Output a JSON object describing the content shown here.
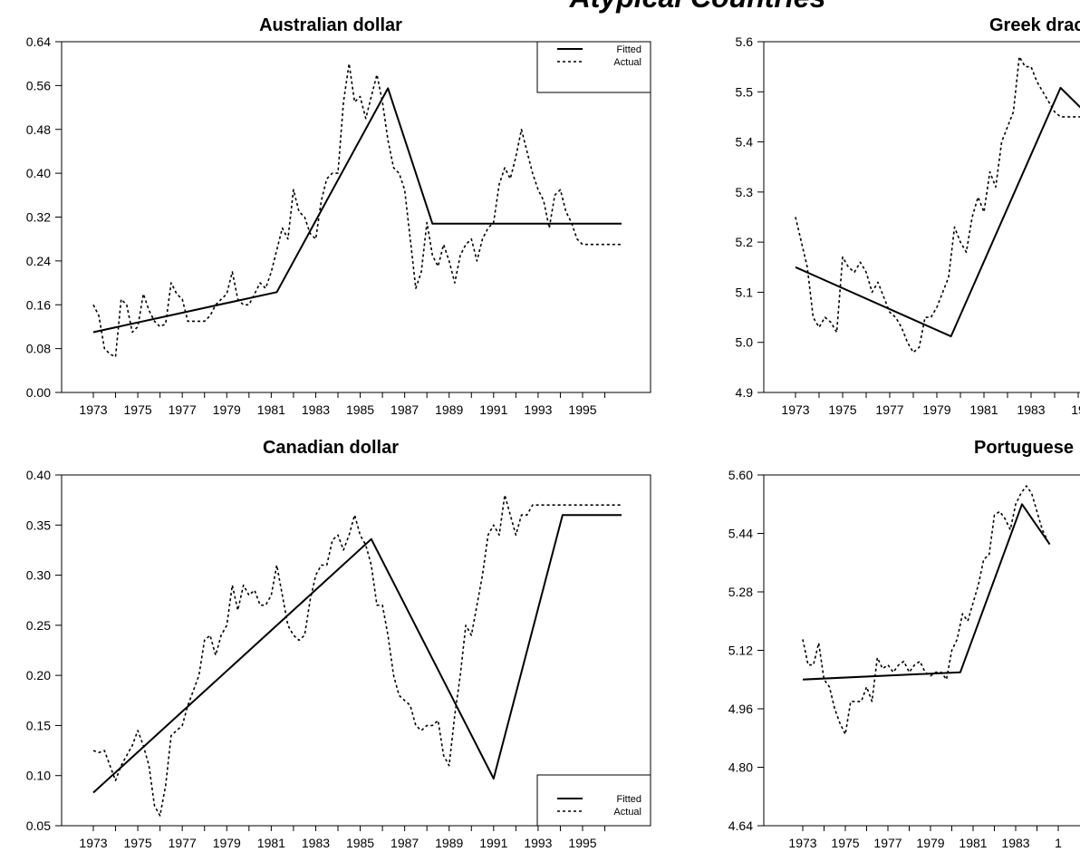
{
  "page": {
    "suptitle": "Atypical Countries"
  },
  "chart_data": [
    {
      "type": "line",
      "title": "Australian dollar",
      "xlabel": "",
      "ylabel": "",
      "ylim": [
        0.0,
        0.64
      ],
      "yticks": [
        "0.00",
        "0.08",
        "0.16",
        "0.24",
        "0.32",
        "0.40",
        "0.48",
        "0.56",
        "0.64"
      ],
      "xticks": [
        "1973",
        "1975",
        "1977",
        "1979",
        "1981",
        "1983",
        "1985",
        "1987",
        "1989",
        "1991",
        "1993",
        "1995"
      ],
      "legend": {
        "position": "top-right",
        "entries": [
          "Fitted",
          "Actual"
        ]
      },
      "series": [
        {
          "name": "Fitted",
          "style": "solid",
          "x": [
            1973,
            1981.25,
            1986.25,
            1988.25,
            1996.75
          ],
          "y": [
            0.11,
            0.183,
            0.555,
            0.308,
            0.308
          ]
        },
        {
          "name": "Actual",
          "style": "dashed",
          "x": [
            1973,
            1973.25,
            1973.5,
            1973.75,
            1974,
            1974.25,
            1974.5,
            1974.75,
            1975,
            1975.25,
            1975.5,
            1975.75,
            1976,
            1976.25,
            1976.5,
            1976.75,
            1977,
            1977.25,
            1977.5,
            1977.75,
            1978,
            1978.25,
            1978.5,
            1978.75,
            1979,
            1979.25,
            1979.5,
            1979.75,
            1980,
            1980.25,
            1980.5,
            1980.75,
            1981,
            1981.25,
            1981.5,
            1981.75,
            1982,
            1982.25,
            1982.5,
            1982.75,
            1983,
            1983.25,
            1983.5,
            1983.75,
            1984,
            1984.25,
            1984.5,
            1984.75,
            1985,
            1985.25,
            1985.5,
            1985.75,
            1986,
            1986.25,
            1986.5,
            1986.75,
            1987,
            1987.25,
            1987.5,
            1987.75,
            1988,
            1988.25,
            1988.5,
            1988.75,
            1989,
            1989.25,
            1989.5,
            1989.75,
            1990,
            1990.25,
            1990.5,
            1990.75,
            1991,
            1991.25,
            1991.5,
            1991.75,
            1992,
            1992.25,
            1992.5,
            1992.75,
            1993,
            1993.25,
            1993.5,
            1993.75,
            1994,
            1994.25,
            1994.5,
            1994.75,
            1995,
            1995.25,
            1995.5,
            1995.75,
            1996,
            1996.25,
            1996.5,
            1996.75
          ],
          "y": [
            0.16,
            0.14,
            0.08,
            0.07,
            0.065,
            0.17,
            0.16,
            0.11,
            0.12,
            0.18,
            0.15,
            0.13,
            0.12,
            0.125,
            0.2,
            0.18,
            0.17,
            0.13,
            0.13,
            0.13,
            0.13,
            0.14,
            0.16,
            0.17,
            0.18,
            0.22,
            0.17,
            0.16,
            0.16,
            0.18,
            0.2,
            0.19,
            0.22,
            0.26,
            0.3,
            0.28,
            0.37,
            0.33,
            0.32,
            0.29,
            0.28,
            0.35,
            0.39,
            0.4,
            0.4,
            0.53,
            0.6,
            0.53,
            0.54,
            0.5,
            0.54,
            0.58,
            0.53,
            0.46,
            0.41,
            0.4,
            0.37,
            0.28,
            0.19,
            0.22,
            0.31,
            0.25,
            0.23,
            0.27,
            0.24,
            0.2,
            0.25,
            0.27,
            0.28,
            0.24,
            0.28,
            0.3,
            0.31,
            0.38,
            0.41,
            0.39,
            0.43,
            0.48,
            0.44,
            0.4,
            0.37,
            0.35,
            0.3,
            0.36,
            0.37,
            0.33,
            0.31,
            0.28,
            0.27,
            0.27,
            0.27,
            0.27,
            0.27,
            0.27,
            0.27,
            0.27
          ]
        }
      ]
    },
    {
      "type": "line",
      "title": "Greek drac",
      "xlabel": "",
      "ylabel": "",
      "ylim": [
        4.9,
        5.6
      ],
      "yticks": [
        "4.9",
        "5.0",
        "5.1",
        "5.2",
        "5.3",
        "5.4",
        "5.5",
        "5.6"
      ],
      "xticks": [
        "1973",
        "1975",
        "1977",
        "1979",
        "1981",
        "1983",
        "19"
      ],
      "legend": null,
      "series": [
        {
          "name": "Fitted",
          "style": "solid",
          "x": [
            1973,
            1979.6,
            1984.25,
            1985.5
          ],
          "y": [
            5.15,
            5.012,
            5.508,
            5.45
          ]
        },
        {
          "name": "Actual",
          "style": "dashed",
          "x": [
            1973,
            1973.25,
            1973.5,
            1973.75,
            1974,
            1974.25,
            1974.5,
            1974.75,
            1975,
            1975.25,
            1975.5,
            1975.75,
            1976,
            1976.25,
            1976.5,
            1976.75,
            1977,
            1977.25,
            1977.5,
            1977.75,
            1978,
            1978.25,
            1978.5,
            1978.75,
            1979,
            1979.25,
            1979.5,
            1979.75,
            1980,
            1980.25,
            1980.5,
            1980.75,
            1981,
            1981.25,
            1981.5,
            1981.75,
            1982,
            1982.25,
            1982.5,
            1982.75,
            1983,
            1983.25,
            1983.5,
            1983.75,
            1984,
            1984.25,
            1984.5,
            1984.75,
            1985,
            1985.25,
            1985.5
          ],
          "y": [
            5.25,
            5.2,
            5.15,
            5.05,
            5.03,
            5.05,
            5.04,
            5.02,
            5.17,
            5.15,
            5.14,
            5.16,
            5.14,
            5.1,
            5.12,
            5.09,
            5.06,
            5.05,
            5.03,
            5.0,
            4.98,
            4.99,
            5.05,
            5.05,
            5.07,
            5.1,
            5.13,
            5.23,
            5.2,
            5.18,
            5.25,
            5.29,
            5.26,
            5.34,
            5.31,
            5.4,
            5.43,
            5.46,
            5.57,
            5.55,
            5.55,
            5.52,
            5.5,
            5.48,
            5.46,
            5.45,
            5.45,
            5.45,
            5.45,
            5.45,
            5.45
          ]
        }
      ]
    },
    {
      "type": "line",
      "title": "Canadian dollar",
      "xlabel": "",
      "ylabel": "",
      "ylim": [
        0.05,
        0.4
      ],
      "yticks": [
        "0.05",
        "0.10",
        "0.15",
        "0.20",
        "0.25",
        "0.30",
        "0.35",
        "0.40"
      ],
      "xticks": [
        "1973",
        "1975",
        "1977",
        "1979",
        "1981",
        "1983",
        "1985",
        "1987",
        "1989",
        "1991",
        "1993",
        "1995"
      ],
      "legend": {
        "position": "bottom-right",
        "entries": [
          "Fitted",
          "Actual"
        ]
      },
      "series": [
        {
          "name": "Fitted",
          "style": "solid",
          "x": [
            1973,
            1985.5,
            1991,
            1994.1,
            1996.75
          ],
          "y": [
            0.083,
            0.336,
            0.097,
            0.36,
            0.36
          ]
        },
        {
          "name": "Actual",
          "style": "dashed",
          "x": [
            1973,
            1973.25,
            1973.5,
            1973.75,
            1974,
            1974.25,
            1974.5,
            1974.75,
            1975,
            1975.25,
            1975.5,
            1975.75,
            1976,
            1976.25,
            1976.5,
            1976.75,
            1977,
            1977.25,
            1977.5,
            1977.75,
            1978,
            1978.25,
            1978.5,
            1978.75,
            1979,
            1979.25,
            1979.5,
            1979.75,
            1980,
            1980.25,
            1980.5,
            1980.75,
            1981,
            1981.25,
            1981.5,
            1981.75,
            1982,
            1982.25,
            1982.5,
            1982.75,
            1983,
            1983.25,
            1983.5,
            1983.75,
            1984,
            1984.25,
            1984.5,
            1984.75,
            1985,
            1985.25,
            1985.5,
            1985.75,
            1986,
            1986.25,
            1986.5,
            1986.75,
            1987,
            1987.25,
            1987.5,
            1987.75,
            1988,
            1988.25,
            1988.5,
            1988.75,
            1989,
            1989.25,
            1989.5,
            1989.75,
            1990,
            1990.25,
            1990.5,
            1990.75,
            1991,
            1991.25,
            1991.5,
            1991.75,
            1992,
            1992.25,
            1992.5,
            1992.75,
            1993,
            1993.25,
            1993.5,
            1993.75,
            1994,
            1994.25,
            1994.5,
            1994.75,
            1995,
            1995.25,
            1995.5,
            1995.75,
            1996,
            1996.25,
            1996.5,
            1996.75
          ],
          "y": [
            0.125,
            0.123,
            0.125,
            0.11,
            0.095,
            0.11,
            0.12,
            0.13,
            0.145,
            0.13,
            0.11,
            0.07,
            0.06,
            0.09,
            0.14,
            0.145,
            0.15,
            0.17,
            0.185,
            0.2,
            0.235,
            0.24,
            0.22,
            0.24,
            0.25,
            0.29,
            0.265,
            0.29,
            0.28,
            0.285,
            0.27,
            0.27,
            0.28,
            0.31,
            0.28,
            0.25,
            0.24,
            0.235,
            0.24,
            0.275,
            0.3,
            0.31,
            0.31,
            0.335,
            0.34,
            0.325,
            0.34,
            0.36,
            0.34,
            0.33,
            0.31,
            0.27,
            0.27,
            0.24,
            0.2,
            0.18,
            0.175,
            0.17,
            0.15,
            0.145,
            0.15,
            0.15,
            0.155,
            0.12,
            0.11,
            0.16,
            0.2,
            0.25,
            0.24,
            0.27,
            0.3,
            0.34,
            0.35,
            0.34,
            0.38,
            0.36,
            0.34,
            0.36,
            0.36,
            0.37,
            0.37,
            0.37,
            0.37,
            0.37,
            0.37,
            0.37,
            0.37,
            0.37,
            0.37,
            0.37,
            0.37,
            0.37,
            0.37,
            0.37,
            0.37,
            0.37
          ]
        }
      ]
    },
    {
      "type": "line",
      "title": "Portuguese",
      "xlabel": "",
      "ylabel": "",
      "ylim": [
        4.64,
        5.6
      ],
      "yticks": [
        "4.64",
        "4.80",
        "4.96",
        "5.12",
        "5.28",
        "5.44",
        "5.60"
      ],
      "xticks": [
        "1973",
        "1975",
        "1977",
        "1979",
        "1981",
        "1983",
        "1"
      ],
      "legend": null,
      "series": [
        {
          "name": "Fitted",
          "style": "solid",
          "x": [
            1973,
            1980.4,
            1983.3,
            1984.6
          ],
          "y": [
            5.04,
            5.06,
            5.52,
            5.41
          ]
        },
        {
          "name": "Actual",
          "style": "dashed",
          "x": [
            1973,
            1973.25,
            1973.5,
            1973.75,
            1974,
            1974.25,
            1974.5,
            1974.75,
            1975,
            1975.25,
            1975.5,
            1975.75,
            1976,
            1976.25,
            1976.5,
            1976.75,
            1977,
            1977.25,
            1977.5,
            1977.75,
            1978,
            1978.25,
            1978.5,
            1978.75,
            1979,
            1979.25,
            1979.5,
            1979.75,
            1980,
            1980.25,
            1980.5,
            1980.75,
            1981,
            1981.25,
            1981.5,
            1981.75,
            1982,
            1982.25,
            1982.5,
            1982.75,
            1983,
            1983.25,
            1983.5,
            1983.75,
            1984,
            1984.25,
            1984.5
          ],
          "y": [
            5.15,
            5.08,
            5.08,
            5.14,
            5.04,
            5.02,
            4.96,
            4.92,
            4.89,
            4.98,
            4.98,
            4.98,
            5.02,
            4.98,
            5.1,
            5.07,
            5.08,
            5.06,
            5.08,
            5.09,
            5.06,
            5.08,
            5.09,
            5.06,
            5.05,
            5.06,
            5.06,
            5.04,
            5.12,
            5.15,
            5.22,
            5.2,
            5.25,
            5.3,
            5.37,
            5.38,
            5.49,
            5.5,
            5.48,
            5.45,
            5.52,
            5.55,
            5.57,
            5.55,
            5.5,
            5.45,
            5.42
          ]
        }
      ]
    }
  ]
}
